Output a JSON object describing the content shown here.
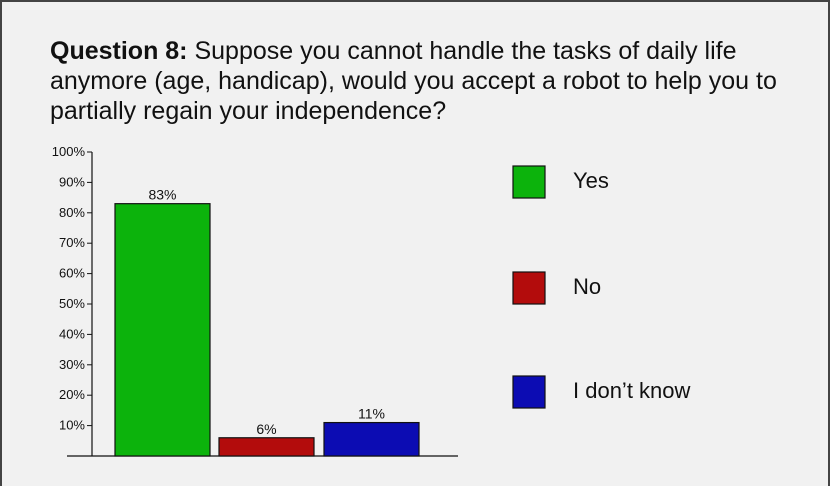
{
  "question": {
    "prefix": "Question 8:",
    "text": "Suppose you cannot handle the tasks of daily life anymore (age, handicap), would you accept a robot to help you to partially regain your independence?"
  },
  "chart_data": {
    "type": "bar",
    "categories": [
      "Yes",
      "No",
      "I don’t know"
    ],
    "values": [
      83,
      6,
      11
    ],
    "data_labels": [
      "83%",
      "6%",
      "11%"
    ],
    "colors": [
      "#0cb30c",
      "#b30c0c",
      "#0c0cb3"
    ],
    "ylim": [
      0,
      100
    ],
    "yticks": [
      10,
      20,
      30,
      40,
      50,
      60,
      70,
      80,
      90,
      100
    ],
    "ytick_labels": [
      "10%",
      "20%",
      "30%",
      "40%",
      "50%",
      "60%",
      "70%",
      "80%",
      "90%",
      "100%"
    ],
    "grid": false,
    "legend_position": "right",
    "legend": [
      "Yes",
      "No",
      "I don’t know"
    ]
  }
}
